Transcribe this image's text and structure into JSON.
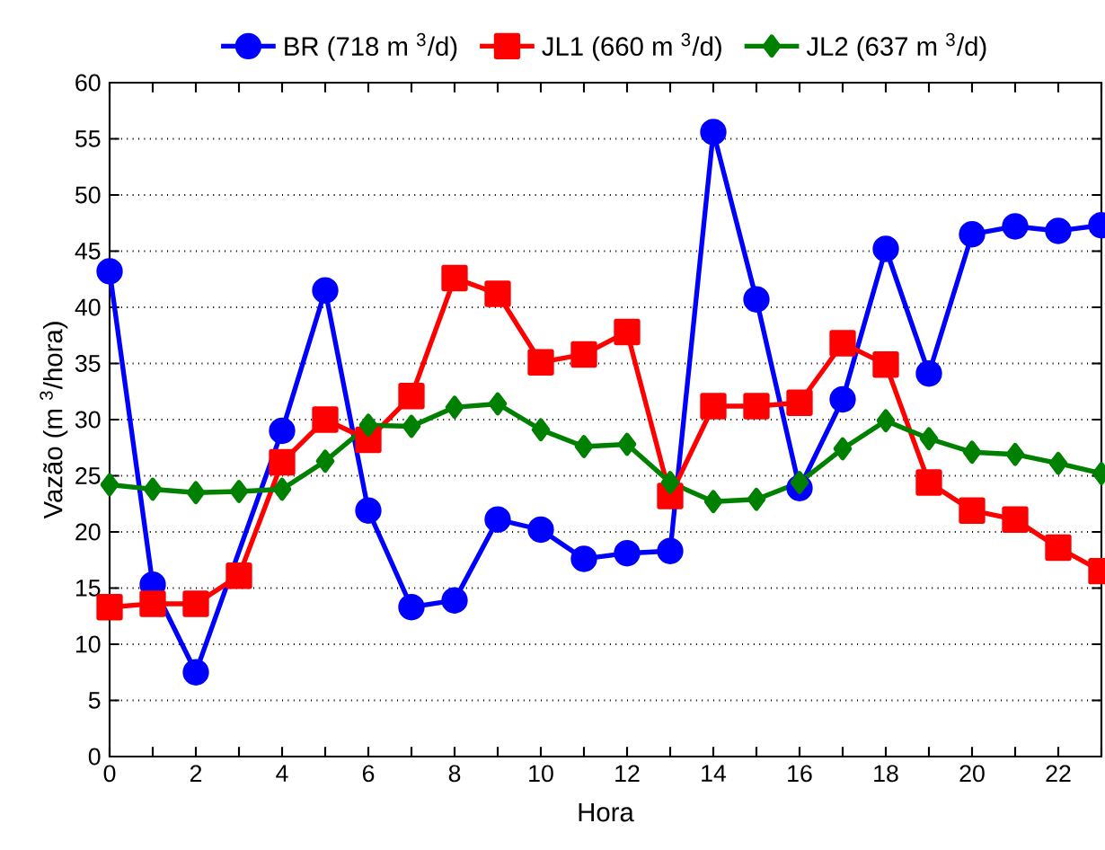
{
  "chart_data": {
    "type": "line",
    "xlabel": "Hora",
    "ylabel": "Vazão (m $^{3}$/hora)",
    "x": [
      0,
      1,
      2,
      3,
      4,
      5,
      6,
      7,
      8,
      9,
      10,
      11,
      12,
      13,
      14,
      15,
      16,
      17,
      18,
      19,
      20,
      21,
      22,
      23
    ],
    "series": [
      {
        "name": "BR (718 m $^{3}$/d)",
        "color": "#0000ff",
        "marker": "circle",
        "values": [
          43.2,
          15.3,
          7.5,
          null,
          29,
          41.5,
          21.9,
          13.3,
          13.9,
          21.1,
          20.2,
          17.6,
          18.1,
          18.3,
          55.6,
          40.7,
          23.9,
          31.8,
          45.2,
          34.1,
          46.5,
          47.2,
          46.8,
          47.3
        ]
      },
      {
        "name": "JL1 (660 m $^{3}$/d)",
        "color": "#ff0000",
        "marker": "square",
        "values": [
          13.3,
          13.6,
          13.6,
          16.1,
          26.2,
          30.0,
          28.2,
          32.1,
          42.6,
          41.2,
          35.1,
          35.8,
          37.8,
          23.2,
          31.2,
          31.2,
          31.5,
          36.8,
          34.9,
          24.4,
          21.9,
          21.1,
          18.6,
          16.5
        ]
      },
      {
        "name": "JL2 (637 m $^{3}$/d)",
        "color": "#008000",
        "marker": "diamond",
        "values": [
          24.2,
          23.8,
          23.5,
          23.6,
          23.8,
          26.3,
          29.5,
          29.4,
          31.1,
          31.4,
          29.1,
          27.6,
          27.8,
          24.4,
          22.7,
          22.9,
          24.4,
          27.4,
          29.9,
          28.3,
          27.1,
          26.9,
          26.1,
          25.2
        ]
      }
    ],
    "xlim": [
      0,
      23
    ],
    "xticks": [
      0,
      {
        "value": 1,
        "label": null
      },
      2,
      {
        "value": 3,
        "label": null
      },
      4,
      {
        "value": 5,
        "label": null
      },
      6,
      {
        "value": 7,
        "label": null
      },
      8,
      {
        "value": 9,
        "label": null
      },
      10,
      {
        "value": 11,
        "label": null
      },
      12,
      {
        "value": 13,
        "label": null
      },
      14,
      {
        "value": 15,
        "label": null
      },
      16,
      {
        "value": 17,
        "label": null
      },
      18,
      {
        "value": 19,
        "label": null
      },
      20,
      {
        "value": 21,
        "label": null
      },
      22,
      {
        "value": 23,
        "label": null
      }
    ],
    "ylim": [
      0,
      60
    ],
    "yticks": [
      0,
      5,
      10,
      15,
      20,
      25,
      30,
      35,
      40,
      45,
      50,
      55,
      60
    ],
    "grid": "y",
    "legend": "top",
    "line_style": "solid"
  }
}
